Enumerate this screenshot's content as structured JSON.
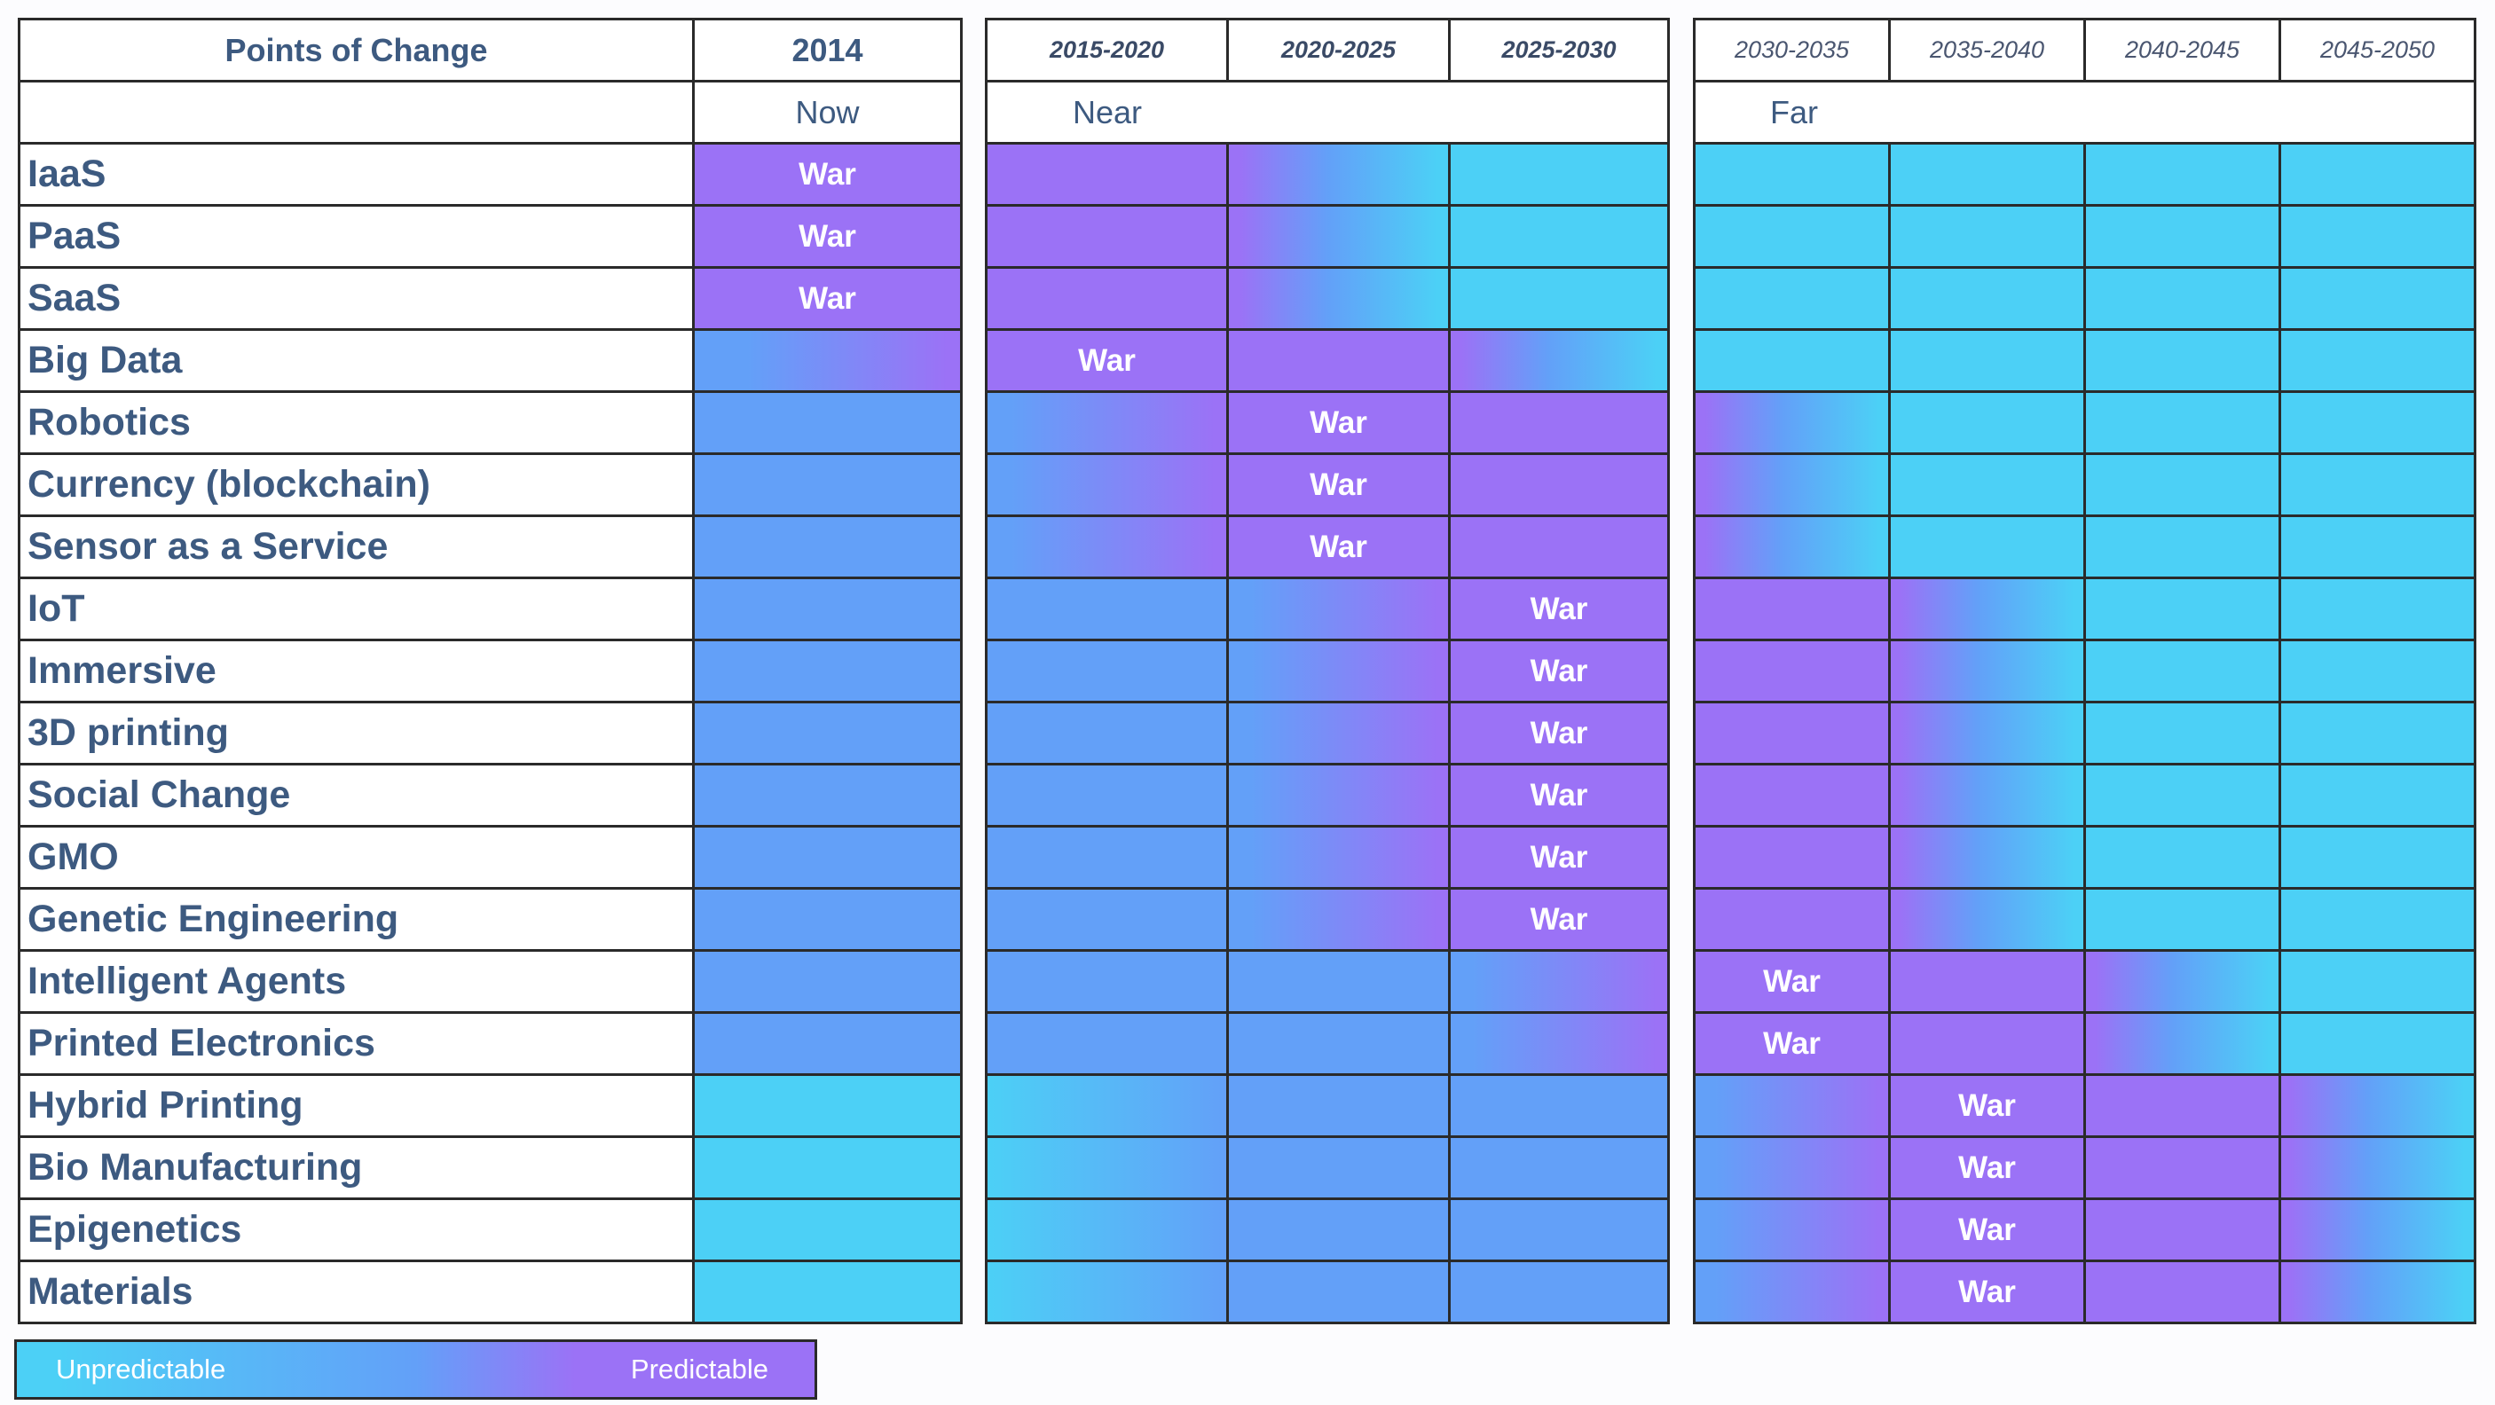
{
  "colors": {
    "unpredictable": "#4cd0f6",
    "mid": "#63a0f8",
    "predictable": "#9b72f6",
    "border": "#2a2a2a",
    "text": "#3d5a80"
  },
  "header": {
    "points_of_change": "Points of Change",
    "now_label": "Now",
    "near_label": "Near",
    "far_label": "Far"
  },
  "legend": {
    "unpredictable": "Unpredictable",
    "predictable": "Predictable"
  },
  "chart_data": {
    "type": "heatmap",
    "title": "",
    "value_scale": "0 = unpredictable, 1 = predictable (color gradient); War = point of disruption",
    "groups": [
      {
        "label": "Now",
        "columns": [
          "2014"
        ]
      },
      {
        "label": "Near",
        "columns": [
          "2015-2020",
          "2020-2025",
          "2025-2030"
        ]
      },
      {
        "label": "Far",
        "columns": [
          "2030-2035",
          "2035-2040",
          "2040-2045",
          "2045-2050"
        ]
      }
    ],
    "columns": [
      "2014",
      "2015-2020",
      "2020-2025",
      "2025-2030",
      "2030-2035",
      "2035-2040",
      "2040-2045",
      "2045-2050"
    ],
    "war_label": "War",
    "rows": [
      {
        "label": "IaaS",
        "war_col": 0
      },
      {
        "label": "PaaS",
        "war_col": 0
      },
      {
        "label": "SaaS",
        "war_col": 0
      },
      {
        "label": "Big Data",
        "war_col": 1
      },
      {
        "label": "Robotics",
        "war_col": 2
      },
      {
        "label": "Currency (blockchain)",
        "war_col": 2
      },
      {
        "label": "Sensor as a Service",
        "war_col": 2
      },
      {
        "label": "IoT",
        "war_col": 3
      },
      {
        "label": "Immersive",
        "war_col": 3
      },
      {
        "label": "3D printing",
        "war_col": 3
      },
      {
        "label": "Social Change",
        "war_col": 3
      },
      {
        "label": "GMO",
        "war_col": 3
      },
      {
        "label": "Genetic Engineering",
        "war_col": 3
      },
      {
        "label": "Intelligent Agents",
        "war_col": 4
      },
      {
        "label": "Printed Electronics",
        "war_col": 4
      },
      {
        "label": "Hybrid Printing",
        "war_col": 5
      },
      {
        "label": "Bio Manufacturing",
        "war_col": 5
      },
      {
        "label": "Epigenetics",
        "war_col": 5
      },
      {
        "label": "Materials",
        "war_col": 5
      }
    ]
  }
}
